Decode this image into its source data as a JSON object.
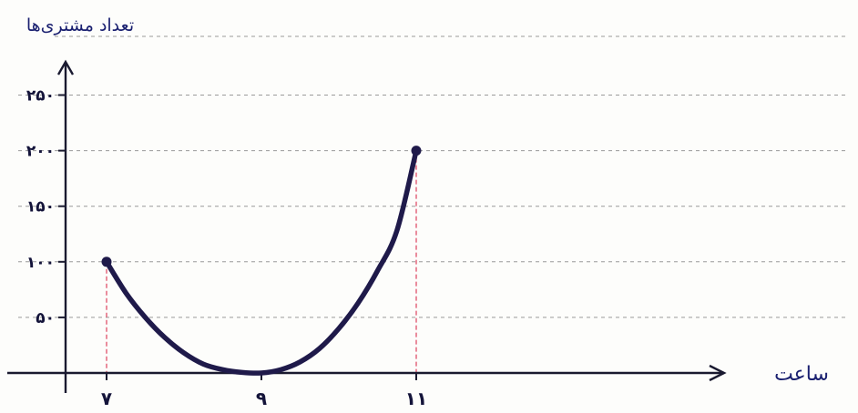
{
  "chart_data": {
    "type": "line",
    "title": "",
    "ylabel": "تعداد مشتری‌ها",
    "xlabel": "ساعت",
    "x_ticks": [
      "۷",
      "۹",
      "۱۱"
    ],
    "y_ticks": [
      "۵۰",
      "۱۰۰",
      "۱۵۰",
      "۲۰۰",
      "۲۵۰"
    ],
    "x_tick_values": [
      7,
      9,
      11
    ],
    "y_tick_values": [
      50,
      100,
      150,
      200,
      250
    ],
    "xlim": [
      6.2,
      12.6
    ],
    "ylim": [
      0,
      270
    ],
    "grid": "horizontal-dashed",
    "series": [
      {
        "x": [
          7,
          7.25,
          7.5,
          7.75,
          8,
          8.25,
          8.5,
          8.75,
          9,
          9.25,
          9.5,
          9.75,
          10,
          10.25,
          10.5,
          10.75,
          11
        ],
        "y": [
          100,
          72,
          50,
          32,
          18,
          8,
          3,
          0.5,
          0,
          3,
          10,
          22,
          40,
          63,
          92,
          128,
          200
        ]
      }
    ],
    "colors": {
      "line": "#1f1a4a",
      "axis": "#1a1a30",
      "grid": "#9a9a9a",
      "drop_lines": "#e0506a",
      "ink": "#14143a"
    }
  }
}
